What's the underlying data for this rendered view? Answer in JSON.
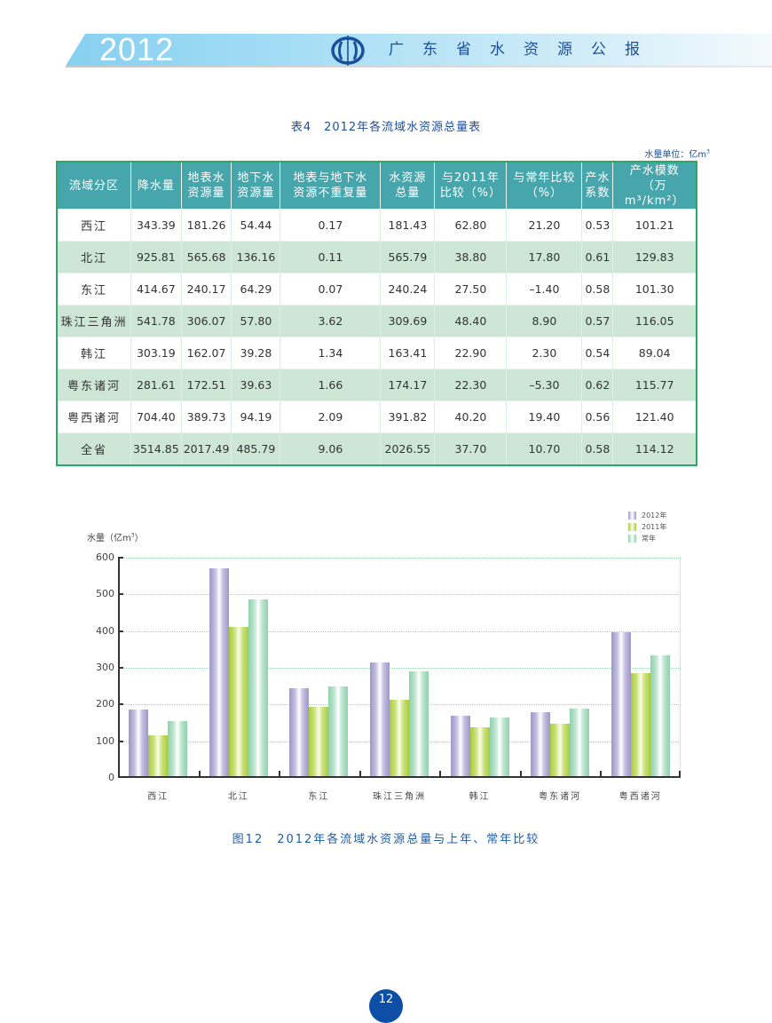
{
  "header": {
    "year": "2012",
    "title": "广东省水资源公报",
    "logo_icon": "water-resources-emblem-icon"
  },
  "table": {
    "title": "表4　2012年各流域水资源总量表",
    "unit_note": "水量单位：亿m",
    "unit_note_sup": "3",
    "headers": [
      {
        "line1": "流域分区",
        "line2": ""
      },
      {
        "line1": "降水量",
        "line2": ""
      },
      {
        "line1": "地表水",
        "line2": "资源量"
      },
      {
        "line1": "地下水",
        "line2": "资源量"
      },
      {
        "line1": "地表与地下水",
        "line2": "资源不重复量"
      },
      {
        "line1": "水资源",
        "line2": "总量"
      },
      {
        "line1": "与2011年",
        "line2": "比较（%）"
      },
      {
        "line1": "与常年比较",
        "line2": "（%）"
      },
      {
        "line1": "产水",
        "line2": "系数"
      },
      {
        "line1": "产水模数",
        "line2": "（万m³/km²）"
      }
    ],
    "rows": [
      [
        "西江",
        "343.39",
        "181.26",
        "54.44",
        "0.17",
        "181.43",
        "62.80",
        "21.20",
        "0.53",
        "101.21"
      ],
      [
        "北江",
        "925.81",
        "565.68",
        "136.16",
        "0.11",
        "565.79",
        "38.80",
        "17.80",
        "0.61",
        "129.83"
      ],
      [
        "东江",
        "414.67",
        "240.17",
        "64.29",
        "0.07",
        "240.24",
        "27.50",
        "–1.40",
        "0.58",
        "101.30"
      ],
      [
        "珠江三角洲",
        "541.78",
        "306.07",
        "57.80",
        "3.62",
        "309.69",
        "48.40",
        "8.90",
        "0.57",
        "116.05"
      ],
      [
        "韩江",
        "303.19",
        "162.07",
        "39.28",
        "1.34",
        "163.41",
        "22.90",
        "2.30",
        "0.54",
        "89.04"
      ],
      [
        "粤东诸河",
        "281.61",
        "172.51",
        "39.63",
        "1.66",
        "174.17",
        "22.30",
        "–5.30",
        "0.62",
        "115.77"
      ],
      [
        "粤西诸河",
        "704.40",
        "389.73",
        "94.19",
        "2.09",
        "391.82",
        "40.20",
        "19.40",
        "0.56",
        "121.40"
      ],
      [
        "全省",
        "3514.85",
        "2017.49",
        "485.79",
        "9.06",
        "2026.55",
        "37.70",
        "10.70",
        "0.58",
        "114.12"
      ]
    ]
  },
  "chart_data": {
    "type": "bar",
    "title": "图12　2012年各流域水资源总量与上年、常年比较",
    "xlabel": "",
    "ylabel": "水量（亿m³）",
    "ylabel_text": "水量（亿m",
    "ylabel_sup": "3",
    "ylim": [
      0,
      600
    ],
    "yticks": [
      "0",
      "100",
      "200",
      "300",
      "400",
      "500",
      "600"
    ],
    "grid": true,
    "legend_position": "top-right",
    "categories": [
      "西江",
      "北江",
      "东江",
      "珠江三角洲",
      "韩江",
      "粤东诸河",
      "粤西诸河"
    ],
    "series": [
      {
        "name": "2012年",
        "color": "#9e96c8",
        "values": [
          181.43,
          565.79,
          240.24,
          309.69,
          163.41,
          174.17,
          391.82
        ]
      },
      {
        "name": "2011年",
        "color": "#a8cc3c",
        "values": [
          111.4,
          407.6,
          188.4,
          208.7,
          133.0,
          142.4,
          279.5
        ]
      },
      {
        "name": "常年",
        "color": "#8fd0ac",
        "values": [
          149.7,
          480.3,
          243.6,
          284.4,
          159.7,
          183.9,
          328.2
        ]
      }
    ]
  },
  "page": {
    "number": "12"
  }
}
